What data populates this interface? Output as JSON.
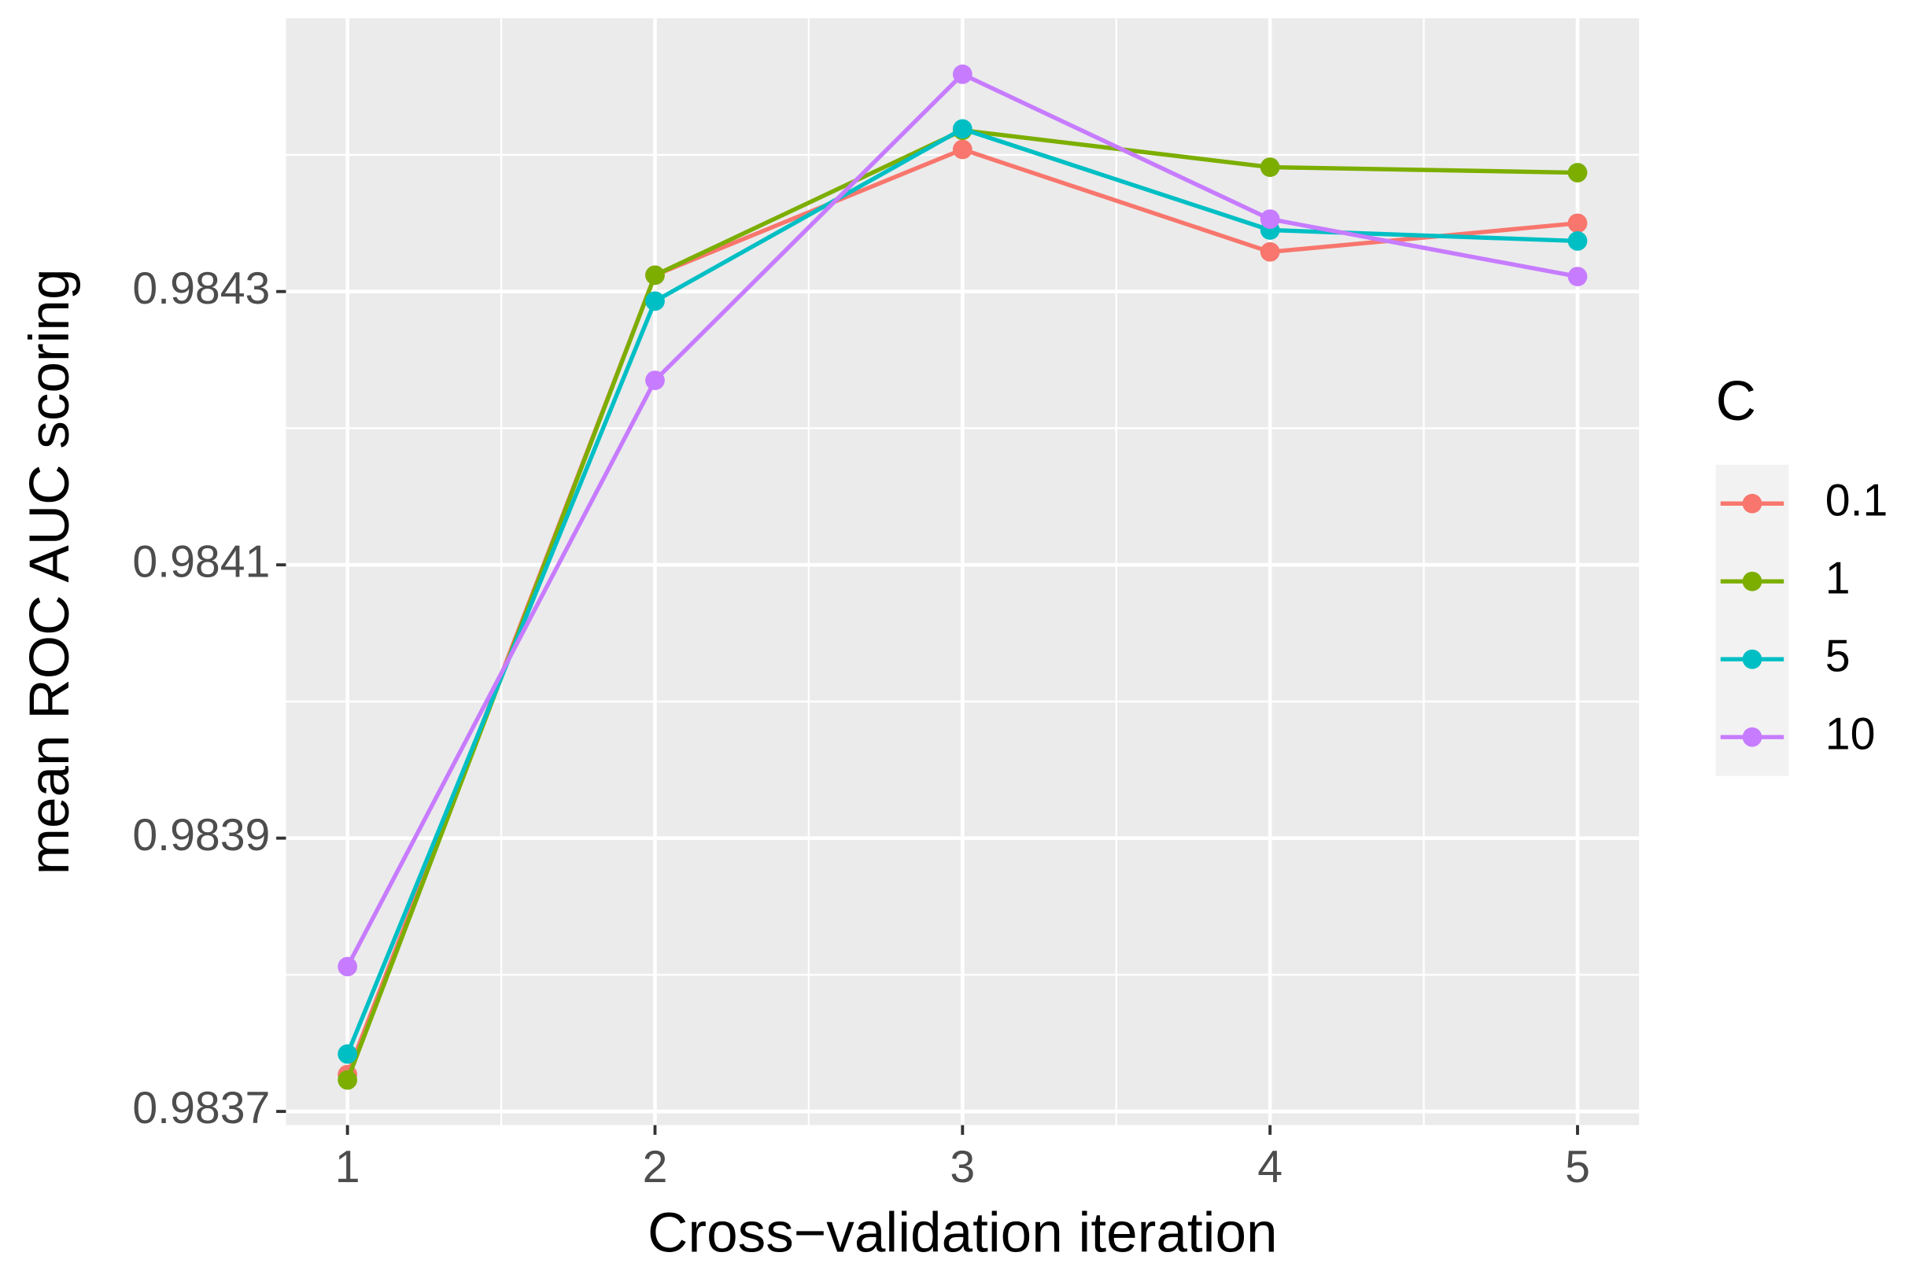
{
  "chart_data": {
    "type": "line",
    "x_label": "Cross−validation iteration",
    "y_label": "mean ROC AUC scoring",
    "x": [
      1,
      2,
      3,
      4,
      5
    ],
    "xlim": [
      0.8,
      5.2
    ],
    "xticks": [
      1,
      2,
      3,
      4,
      5
    ],
    "ylim": [
      0.98369,
      0.9845
    ],
    "yticks": [
      0.9837,
      0.9839,
      0.9841,
      0.9843
    ],
    "grid": true,
    "legend_title": "C",
    "legend_position": "right",
    "series": [
      {
        "name": "0.1",
        "color": "#F8766D",
        "values": [
          0.983727,
          0.984312,
          0.984404,
          0.984329,
          0.98435
        ]
      },
      {
        "name": "1",
        "color": "#7CAE00",
        "values": [
          0.983723,
          0.984312,
          0.984418,
          0.984391,
          0.984387
        ]
      },
      {
        "name": "5",
        "color": "#00BFC4",
        "values": [
          0.983742,
          0.984293,
          0.984419,
          0.984345,
          0.984337
        ]
      },
      {
        "name": "10",
        "color": "#C77CFF",
        "values": [
          0.983806,
          0.984235,
          0.984459,
          0.984353,
          0.984311
        ]
      }
    ]
  }
}
